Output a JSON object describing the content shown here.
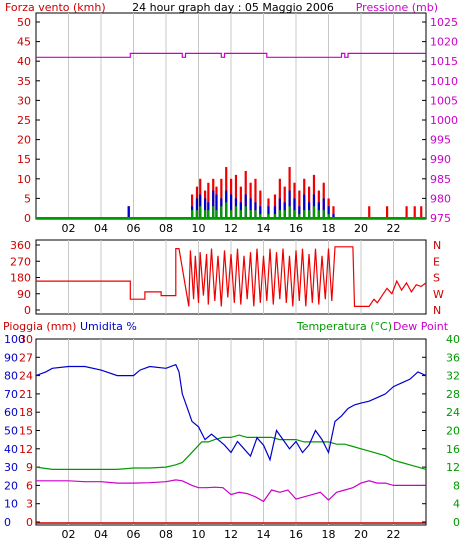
{
  "chart_data": [
    {
      "type": "bar",
      "title": "24 hour graph day : 05 Maggio 2006",
      "left_label": "Forza vento (kmh)",
      "right_label": "Pressione (mb)",
      "colors": {
        "left_axis": "#cc0000",
        "right_axis": "#cc00cc",
        "pressure": "#cc00cc",
        "wind_gust": "#ee0000",
        "wind_avg": "#0000cc",
        "wind_low": "#009900"
      },
      "x_ticks": [
        "02",
        "04",
        "06",
        "08",
        "10",
        "12",
        "14",
        "16",
        "18",
        "20",
        "22"
      ],
      "x_range_hours": [
        0,
        24
      ],
      "y_left": {
        "range": [
          0,
          50
        ],
        "ticks": [
          "0",
          "5",
          "10",
          "15",
          "20",
          "25",
          "30",
          "35",
          "40",
          "45",
          "50"
        ]
      },
      "y_right": {
        "range": [
          975,
          1025
        ],
        "ticks": [
          "975",
          "980",
          "985",
          "990",
          "995",
          "1000",
          "1005",
          "1010",
          "1015",
          "1020",
          "1025"
        ]
      },
      "pressure_series": {
        "x": [
          0,
          5.8,
          5.8,
          9.0,
          9.0,
          9.2,
          9.2,
          11.4,
          11.4,
          11.6,
          11.6,
          14.2,
          14.2,
          18.8,
          18.8,
          19.0,
          19.0,
          19.2,
          19.2,
          24
        ],
        "y": [
          1016,
          1016,
          1017,
          1017,
          1016,
          1016,
          1017,
          1017,
          1016,
          1016,
          1017,
          1017,
          1016,
          1016,
          1017,
          1017,
          1016,
          1016,
          1017,
          1017
        ]
      },
      "wind_bars": [
        {
          "h": 5.7,
          "gust": 3,
          "avg": 3,
          "low": 0
        },
        {
          "h": 9.6,
          "gust": 6,
          "avg": 3,
          "low": 2
        },
        {
          "h": 9.9,
          "gust": 8,
          "avg": 5,
          "low": 2
        },
        {
          "h": 10.1,
          "gust": 10,
          "avg": 6,
          "low": 3
        },
        {
          "h": 10.4,
          "gust": 7,
          "avg": 5,
          "low": 2
        },
        {
          "h": 10.6,
          "gust": 9,
          "avg": 4,
          "low": 2
        },
        {
          "h": 10.9,
          "gust": 10,
          "avg": 7,
          "low": 3
        },
        {
          "h": 11.1,
          "gust": 8,
          "avg": 6,
          "low": 2
        },
        {
          "h": 11.4,
          "gust": 10,
          "avg": 5,
          "low": 3
        },
        {
          "h": 11.7,
          "gust": 13,
          "avg": 7,
          "low": 4
        },
        {
          "h": 12.0,
          "gust": 10,
          "avg": 6,
          "low": 2
        },
        {
          "h": 12.3,
          "gust": 11,
          "avg": 5,
          "low": 3
        },
        {
          "h": 12.6,
          "gust": 8,
          "avg": 4,
          "low": 2
        },
        {
          "h": 12.9,
          "gust": 12,
          "avg": 6,
          "low": 3
        },
        {
          "h": 13.2,
          "gust": 9,
          "avg": 5,
          "low": 2
        },
        {
          "h": 13.5,
          "gust": 10,
          "avg": 4,
          "low": 2
        },
        {
          "h": 13.8,
          "gust": 7,
          "avg": 3,
          "low": 1
        },
        {
          "h": 14.3,
          "gust": 5,
          "avg": 3,
          "low": 1
        },
        {
          "h": 14.7,
          "gust": 6,
          "avg": 3,
          "low": 1
        },
        {
          "h": 15.0,
          "gust": 10,
          "avg": 5,
          "low": 2
        },
        {
          "h": 15.3,
          "gust": 8,
          "avg": 4,
          "low": 2
        },
        {
          "h": 15.6,
          "gust": 13,
          "avg": 7,
          "low": 3
        },
        {
          "h": 15.9,
          "gust": 9,
          "avg": 5,
          "low": 2
        },
        {
          "h": 16.2,
          "gust": 7,
          "avg": 3,
          "low": 1
        },
        {
          "h": 16.5,
          "gust": 10,
          "avg": 6,
          "low": 2
        },
        {
          "h": 16.8,
          "gust": 8,
          "avg": 4,
          "low": 2
        },
        {
          "h": 17.1,
          "gust": 11,
          "avg": 6,
          "low": 3
        },
        {
          "h": 17.4,
          "gust": 7,
          "avg": 4,
          "low": 2
        },
        {
          "h": 17.7,
          "gust": 9,
          "avg": 5,
          "low": 2
        },
        {
          "h": 18.0,
          "gust": 5,
          "avg": 3,
          "low": 1
        },
        {
          "h": 18.3,
          "gust": 3,
          "avg": 1,
          "low": 0
        },
        {
          "h": 20.5,
          "gust": 3,
          "avg": 0,
          "low": 0
        },
        {
          "h": 21.6,
          "gust": 3,
          "avg": 0,
          "low": 0
        },
        {
          "h": 22.8,
          "gust": 3,
          "avg": 0,
          "low": 0
        },
        {
          "h": 23.3,
          "gust": 3,
          "avg": 0,
          "low": 0
        },
        {
          "h": 23.7,
          "gust": 3,
          "avg": 0,
          "low": 0
        }
      ]
    },
    {
      "type": "line",
      "left_ticks": [
        "0",
        "90",
        "180",
        "270",
        "360"
      ],
      "right_ticks": [
        "N",
        "E",
        "S",
        "W",
        "N"
      ],
      "y_range": [
        0,
        360
      ],
      "color": "#ee0000",
      "series": {
        "x": [
          0,
          5.8,
          5.8,
          6.7,
          6.7,
          7.7,
          7.7,
          8.6,
          8.6,
          8.8,
          8.8,
          9.4,
          9.5,
          9.7,
          9.8,
          10.0,
          10.1,
          10.3,
          10.5,
          10.6,
          10.8,
          11.0,
          11.2,
          11.4,
          11.6,
          11.8,
          12.0,
          12.2,
          12.4,
          12.6,
          12.8,
          13.0,
          13.2,
          13.4,
          13.6,
          13.8,
          14.0,
          14.2,
          14.4,
          14.6,
          14.8,
          15.0,
          15.2,
          15.4,
          15.6,
          15.8,
          16.0,
          16.2,
          16.4,
          16.6,
          16.8,
          17.0,
          17.2,
          17.4,
          17.6,
          17.8,
          18.0,
          18.2,
          18.4,
          18.6,
          18.8,
          19.0,
          19.2,
          19.5,
          19.6,
          20.5,
          20.8,
          21.0,
          21.3,
          21.6,
          21.9,
          22.2,
          22.5,
          22.8,
          23.1,
          23.4,
          23.7,
          24
        ],
        "y": [
          160,
          160,
          60,
          60,
          100,
          100,
          80,
          80,
          340,
          340,
          340,
          20,
          330,
          60,
          300,
          40,
          320,
          80,
          310,
          30,
          340,
          50,
          300,
          20,
          330,
          70,
          310,
          40,
          340,
          30,
          300,
          60,
          320,
          20,
          340,
          40,
          300,
          50,
          340,
          30,
          320,
          60,
          340,
          40,
          300,
          20,
          330,
          50,
          340,
          20,
          310,
          40,
          340,
          30,
          300,
          60,
          340,
          50,
          350,
          350,
          350,
          350,
          350,
          350,
          20,
          20,
          60,
          40,
          80,
          120,
          90,
          160,
          110,
          150,
          100,
          140,
          130,
          150
        ]
      }
    },
    {
      "type": "line",
      "left_labels": {
        "rain": "Pioggia (mm)",
        "humidity": "Umidita %"
      },
      "right_labels": {
        "temperature": "Temperatura (°C)",
        "dew": "Dew Point"
      },
      "colors": {
        "rain_axis": "#cc0000",
        "humidity_axis": "#0000cc",
        "temp_axis": "#009900",
        "dew": "#cc00cc",
        "rain": "#cc0000"
      },
      "rain_ticks": [
        "0",
        "3",
        "6",
        "9",
        "12",
        "15",
        "18",
        "21",
        "24",
        "27",
        "30"
      ],
      "humidity_ticks": [
        "0",
        "10",
        "20",
        "30",
        "40",
        "50",
        "60",
        "70",
        "80",
        "90",
        "100"
      ],
      "temp_ticks": [
        "0",
        "4",
        "8",
        "12",
        "16",
        "20",
        "24",
        "28",
        "32",
        "36",
        "40"
      ],
      "humidity": {
        "x": [
          0,
          0.6,
          1.0,
          2.0,
          3.0,
          4.0,
          5.0,
          6.0,
          6.4,
          7.0,
          8.0,
          8.6,
          8.8,
          9.0,
          9.4,
          9.6,
          10.0,
          10.4,
          10.8,
          11.2,
          11.6,
          12.0,
          12.4,
          12.8,
          13.2,
          13.6,
          14.0,
          14.4,
          14.8,
          15.2,
          15.6,
          16.0,
          16.4,
          16.8,
          17.2,
          17.6,
          18.0,
          18.4,
          18.8,
          19.2,
          19.6,
          20.0,
          20.5,
          21.0,
          21.5,
          22.0,
          22.5,
          23.0,
          23.5,
          24
        ],
        "y": [
          80,
          82,
          84,
          85,
          85,
          83,
          80,
          80,
          83,
          85,
          84,
          86,
          82,
          70,
          60,
          55,
          52,
          45,
          48,
          45,
          42,
          38,
          44,
          40,
          36,
          46,
          42,
          34,
          50,
          45,
          40,
          44,
          38,
          42,
          50,
          45,
          38,
          55,
          58,
          62,
          64,
          65,
          66,
          68,
          70,
          74,
          76,
          78,
          82,
          80
        ]
      },
      "temperature": {
        "x": [
          0,
          1,
          2,
          3,
          4,
          5,
          6,
          7,
          8,
          8.6,
          9.0,
          9.4,
          9.8,
          10.2,
          10.6,
          11.0,
          11.5,
          12.0,
          12.5,
          13.0,
          13.5,
          14.0,
          14.5,
          15.0,
          15.5,
          16.0,
          16.5,
          17.0,
          17.5,
          18.0,
          18.5,
          19.0,
          19.5,
          20.0,
          20.5,
          21.0,
          21.5,
          22.0,
          22.5,
          23.0,
          23.5,
          24
        ],
        "y": [
          12,
          11.5,
          11.5,
          11.5,
          11.5,
          11.5,
          11.8,
          11.8,
          12,
          12.5,
          13,
          14.5,
          16,
          17.5,
          17.5,
          18,
          18.5,
          18.5,
          19,
          18.5,
          18.5,
          18.5,
          18.5,
          18,
          18,
          18,
          17.5,
          17.5,
          17.5,
          17.5,
          17,
          17,
          16.5,
          16,
          15.5,
          15,
          14.5,
          13.5,
          13,
          12.5,
          12,
          11.5
        ]
      },
      "dew_point": {
        "x": [
          0,
          1,
          2,
          3,
          4,
          5,
          6,
          7,
          8,
          8.6,
          9.0,
          9.6,
          10.0,
          10.5,
          11.0,
          11.5,
          12.0,
          12.5,
          13.0,
          13.5,
          14.0,
          14.5,
          15.0,
          15.5,
          16.0,
          16.5,
          17.0,
          17.5,
          18.0,
          18.5,
          19.0,
          19.5,
          20.0,
          20.5,
          21.0,
          21.5,
          22.0,
          22.5,
          23.0,
          23.5,
          24
        ],
        "y": [
          9,
          9,
          9,
          8.8,
          8.8,
          8.5,
          8.5,
          8.6,
          8.8,
          9.2,
          9,
          8,
          7.5,
          7.5,
          7.6,
          7.5,
          6,
          6.5,
          6.2,
          5.5,
          4.5,
          7,
          6.5,
          7,
          5,
          5.5,
          6,
          6.5,
          4.8,
          6.5,
          7,
          7.5,
          8.5,
          9,
          8.5,
          8.5,
          8,
          8,
          8,
          8,
          8
        ]
      },
      "rain": {
        "x": [
          0,
          24
        ],
        "y": [
          0,
          0
        ]
      }
    }
  ]
}
